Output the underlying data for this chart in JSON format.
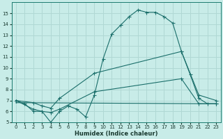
{
  "background_color": "#c8ece8",
  "grid_color": "#b0d8d4",
  "line_color": "#1a6e6a",
  "xlabel": "Humidex (Indice chaleur)",
  "ylim": [
    5,
    16
  ],
  "xlim": [
    -0.5,
    23.5
  ],
  "yticks": [
    5,
    6,
    7,
    8,
    9,
    10,
    11,
    12,
    13,
    14,
    15
  ],
  "xticks": [
    0,
    1,
    2,
    3,
    4,
    5,
    6,
    7,
    8,
    9,
    10,
    11,
    12,
    13,
    14,
    15,
    16,
    17,
    18,
    19,
    20,
    21,
    22,
    23
  ],
  "curve1_x": [
    0,
    1,
    2,
    3,
    4,
    5,
    6,
    7,
    8,
    9,
    10,
    11,
    12,
    13,
    14,
    15,
    16,
    17,
    18,
    19,
    20,
    21,
    22,
    23
  ],
  "curve1_y": [
    7.0,
    6.7,
    6.0,
    6.0,
    5.0,
    6.0,
    6.5,
    6.2,
    5.5,
    7.5,
    10.8,
    13.1,
    13.9,
    14.7,
    15.3,
    15.1,
    15.1,
    14.7,
    14.1,
    11.5,
    9.4,
    7.2,
    6.7,
    6.7
  ],
  "curve2_x": [
    0,
    2,
    3,
    4,
    5,
    9,
    19,
    21,
    23
  ],
  "curve2_y": [
    7.0,
    6.8,
    6.5,
    6.3,
    7.2,
    9.5,
    11.5,
    7.5,
    7.0
  ],
  "curve3_x": [
    0,
    2,
    3,
    4,
    5,
    9,
    19,
    21,
    23
  ],
  "curve3_y": [
    7.0,
    6.2,
    6.0,
    5.9,
    6.2,
    7.8,
    9.0,
    6.7,
    6.7
  ],
  "curve4_x": [
    0,
    23
  ],
  "curve4_y": [
    6.8,
    6.7
  ]
}
